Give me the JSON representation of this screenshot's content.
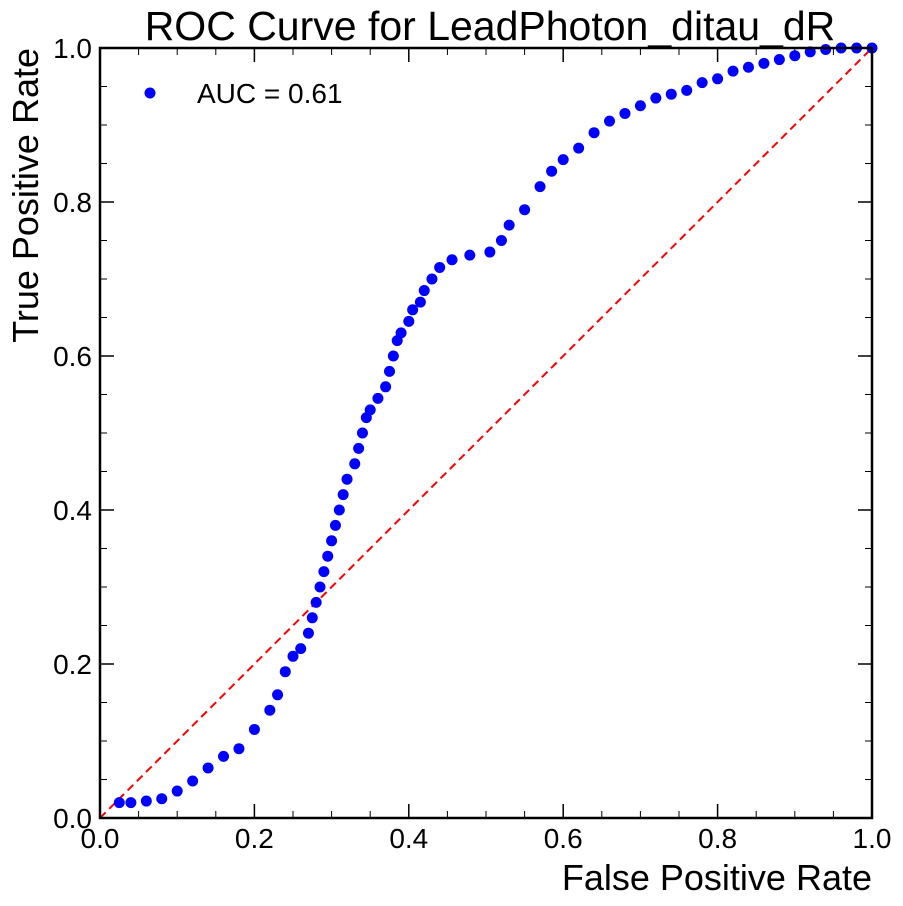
{
  "chart_data": {
    "type": "scatter",
    "title": "ROC Curve for LeadPhoton_ditau_dR",
    "x_label": "False Positive Rate",
    "y_label": "True Positive Rate",
    "series": [
      {
        "name": "AUC = 0.61",
        "color": "#0000ff",
        "x": [
          0.025,
          0.04,
          0.06,
          0.08,
          0.1,
          0.12,
          0.14,
          0.16,
          0.18,
          0.2,
          0.22,
          0.23,
          0.24,
          0.25,
          0.26,
          0.27,
          0.275,
          0.28,
          0.285,
          0.29,
          0.295,
          0.3,
          0.305,
          0.31,
          0.315,
          0.32,
          0.33,
          0.335,
          0.34,
          0.345,
          0.35,
          0.36,
          0.37,
          0.375,
          0.38,
          0.385,
          0.39,
          0.4,
          0.405,
          0.415,
          0.42,
          0.43,
          0.44,
          0.456,
          0.479,
          0.505,
          0.52,
          0.53,
          0.55,
          0.57,
          0.585,
          0.6,
          0.62,
          0.64,
          0.66,
          0.68,
          0.7,
          0.72,
          0.74,
          0.76,
          0.78,
          0.8,
          0.82,
          0.84,
          0.86,
          0.88,
          0.9,
          0.92,
          0.94,
          0.96,
          0.98,
          1.0
        ],
        "values": [
          0.02,
          0.02,
          0.022,
          0.025,
          0.035,
          0.048,
          0.065,
          0.08,
          0.09,
          0.115,
          0.14,
          0.16,
          0.19,
          0.21,
          0.22,
          0.24,
          0.26,
          0.28,
          0.3,
          0.32,
          0.34,
          0.36,
          0.38,
          0.4,
          0.42,
          0.44,
          0.46,
          0.48,
          0.5,
          0.52,
          0.53,
          0.545,
          0.56,
          0.58,
          0.6,
          0.62,
          0.63,
          0.645,
          0.66,
          0.67,
          0.685,
          0.7,
          0.715,
          0.725,
          0.731,
          0.735,
          0.75,
          0.77,
          0.79,
          0.82,
          0.84,
          0.855,
          0.87,
          0.89,
          0.905,
          0.915,
          0.925,
          0.935,
          0.94,
          0.945,
          0.955,
          0.96,
          0.97,
          0.975,
          0.98,
          0.985,
          0.99,
          0.995,
          0.998,
          1.0,
          1.0,
          1.0
        ]
      }
    ],
    "reference_line": {
      "x": [
        0,
        1
      ],
      "values": [
        0,
        1
      ],
      "color": "#ff0000",
      "style": "dashed"
    },
    "xlim": [
      0,
      1
    ],
    "ylim": [
      0,
      1
    ],
    "xticks": [
      {
        "value": 0,
        "label": "0.0"
      },
      0.2,
      0.4,
      0.6,
      0.8,
      {
        "value": 1,
        "label": "1.0"
      }
    ],
    "yticks": [
      {
        "value": 0,
        "label": "0.0"
      },
      0.2,
      0.4,
      0.6,
      0.8,
      {
        "value": 1,
        "label": "1.0"
      }
    ],
    "xminorticks": [
      0.05,
      0.1,
      0.15,
      0.25,
      0.3,
      0.35,
      0.45,
      0.5,
      0.55,
      0.65,
      0.7,
      0.75,
      0.85,
      0.9,
      0.95
    ],
    "yminorticks": [
      0.05,
      0.1,
      0.15,
      0.25,
      0.3,
      0.35,
      0.45,
      0.5,
      0.55,
      0.65,
      0.7,
      0.75,
      0.85,
      0.9,
      0.95
    ],
    "legend": "upper left",
    "grid": false
  }
}
